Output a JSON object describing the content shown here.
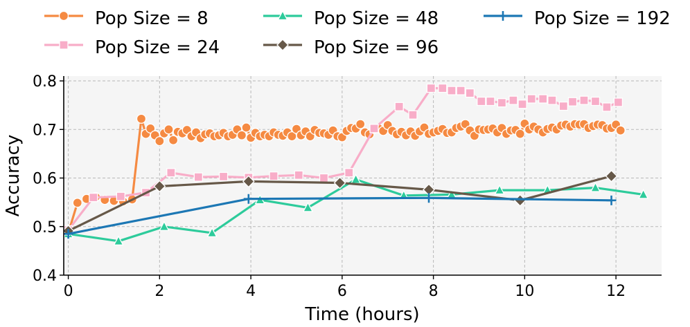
{
  "chart_data": {
    "type": "line",
    "title": "",
    "xlabel": "Time (hours)",
    "ylabel": "Accuracy",
    "xlim": [
      -0.1,
      13.0
    ],
    "ylim": [
      0.4,
      0.81
    ],
    "x_ticks": [
      0,
      2,
      4,
      6,
      8,
      10,
      12
    ],
    "y_ticks": [
      0.4,
      0.5,
      0.6,
      0.7,
      0.8
    ],
    "x_tick_labels": [
      "0",
      "2",
      "4",
      "6",
      "8",
      "10",
      "12"
    ],
    "y_tick_labels": [
      "0.4",
      "0.5",
      "0.6",
      "0.7",
      "0.8"
    ],
    "grid": true,
    "legend_position": "top",
    "series": [
      {
        "name": "Pop Size = 8",
        "color": "#F58A42",
        "marker": "circle",
        "x": [
          0,
          0.2,
          0.4,
          0.6,
          0.8,
          1.0,
          1.2,
          1.4,
          1.6,
          1.7,
          1.8,
          1.9,
          2.0,
          2.1,
          2.2,
          2.3,
          2.4,
          2.5,
          2.6,
          2.7,
          2.8,
          2.9,
          3.0,
          3.1,
          3.2,
          3.3,
          3.4,
          3.5,
          3.6,
          3.7,
          3.8,
          3.9,
          4.0,
          4.1,
          4.2,
          4.3,
          4.4,
          4.5,
          4.6,
          4.7,
          4.8,
          4.9,
          5.0,
          5.1,
          5.2,
          5.3,
          5.4,
          5.5,
          5.6,
          5.7,
          5.8,
          5.9,
          6.0,
          6.1,
          6.2,
          6.3,
          6.4,
          6.5,
          6.6,
          6.7,
          6.8,
          6.9,
          7.0,
          7.1,
          7.2,
          7.3,
          7.4,
          7.5,
          7.6,
          7.7,
          7.8,
          7.9,
          8.0,
          8.1,
          8.2,
          8.3,
          8.4,
          8.5,
          8.6,
          8.7,
          8.8,
          8.9,
          9.0,
          9.1,
          9.2,
          9.3,
          9.4,
          9.5,
          9.6,
          9.7,
          9.8,
          9.9,
          10.0,
          10.1,
          10.2,
          10.3,
          10.4,
          10.5,
          10.6,
          10.7,
          10.8,
          10.9,
          11.0,
          11.1,
          11.2,
          11.3,
          11.4,
          11.5,
          11.6,
          11.7,
          11.8,
          11.9,
          12.0,
          12.1
        ],
        "values": [
          0.487,
          0.549,
          0.557,
          0.561,
          0.555,
          0.553,
          0.552,
          0.556,
          0.722,
          0.691,
          0.702,
          0.688,
          0.676,
          0.692,
          0.7,
          0.678,
          0.695,
          0.692,
          0.699,
          0.686,
          0.694,
          0.682,
          0.69,
          0.692,
          0.686,
          0.688,
          0.693,
          0.686,
          0.689,
          0.7,
          0.688,
          0.704,
          0.683,
          0.693,
          0.686,
          0.689,
          0.686,
          0.694,
          0.689,
          0.687,
          0.694,
          0.686,
          0.701,
          0.688,
          0.696,
          0.686,
          0.699,
          0.693,
          0.692,
          0.689,
          0.698,
          0.686,
          0.684,
          0.697,
          0.703,
          0.702,
          0.711,
          0.694,
          0.69,
          0.701,
          0.702,
          0.697,
          0.709,
          0.697,
          0.69,
          0.695,
          0.688,
          0.696,
          0.687,
          0.696,
          0.704,
          0.691,
          0.694,
          0.697,
          0.701,
          0.693,
          0.694,
          0.703,
          0.706,
          0.711,
          0.698,
          0.687,
          0.7,
          0.699,
          0.7,
          0.702,
          0.694,
          0.703,
          0.691,
          0.698,
          0.699,
          0.691,
          0.712,
          0.7,
          0.706,
          0.7,
          0.694,
          0.701,
          0.704,
          0.7,
          0.708,
          0.71,
          0.706,
          0.711,
          0.71,
          0.711,
          0.703,
          0.707,
          0.71,
          0.709,
          0.702,
          0.703,
          0.71,
          0.698
        ]
      },
      {
        "name": "Pop Size = 24",
        "color": "#F8ADC8",
        "marker": "square",
        "x": [
          0,
          0.55,
          1.15,
          1.7,
          2.25,
          2.85,
          3.4,
          3.95,
          4.5,
          5.05,
          5.6,
          6.15,
          6.7,
          7.25,
          7.55,
          7.95,
          8.2,
          8.4,
          8.6,
          8.8,
          9.05,
          9.25,
          9.5,
          9.75,
          9.95,
          10.15,
          10.4,
          10.6,
          10.85,
          11.05,
          11.3,
          11.55,
          11.8,
          12.05
        ],
        "values": [
          0.493,
          0.56,
          0.562,
          0.57,
          0.611,
          0.602,
          0.603,
          0.601,
          0.604,
          0.606,
          0.6,
          0.611,
          0.702,
          0.747,
          0.73,
          0.785,
          0.785,
          0.78,
          0.78,
          0.775,
          0.758,
          0.758,
          0.755,
          0.76,
          0.752,
          0.763,
          0.763,
          0.76,
          0.748,
          0.757,
          0.76,
          0.758,
          0.746,
          0.756
        ]
      },
      {
        "name": "Pop Size = 48",
        "color": "#2DCB9B",
        "marker": "triangle",
        "x": [
          0,
          1.1,
          2.1,
          3.15,
          4.2,
          5.25,
          6.3,
          7.35,
          8.4,
          9.45,
          10.5,
          11.55,
          12.6
        ],
        "values": [
          0.485,
          0.47,
          0.5,
          0.487,
          0.555,
          0.539,
          0.597,
          0.564,
          0.566,
          0.575,
          0.575,
          0.58,
          0.566
        ]
      },
      {
        "name": "Pop Size = 96",
        "color": "#665848",
        "marker": "diamond",
        "x": [
          0,
          2.0,
          3.95,
          5.95,
          7.9,
          9.9,
          11.9
        ],
        "values": [
          0.491,
          0.583,
          0.593,
          0.59,
          0.576,
          0.554,
          0.604
        ]
      },
      {
        "name": "Pop Size = 192",
        "color": "#1C77B4",
        "marker": "plus",
        "x": [
          0,
          3.95,
          7.9,
          11.9
        ],
        "values": [
          0.485,
          0.557,
          0.559,
          0.554
        ]
      }
    ]
  }
}
